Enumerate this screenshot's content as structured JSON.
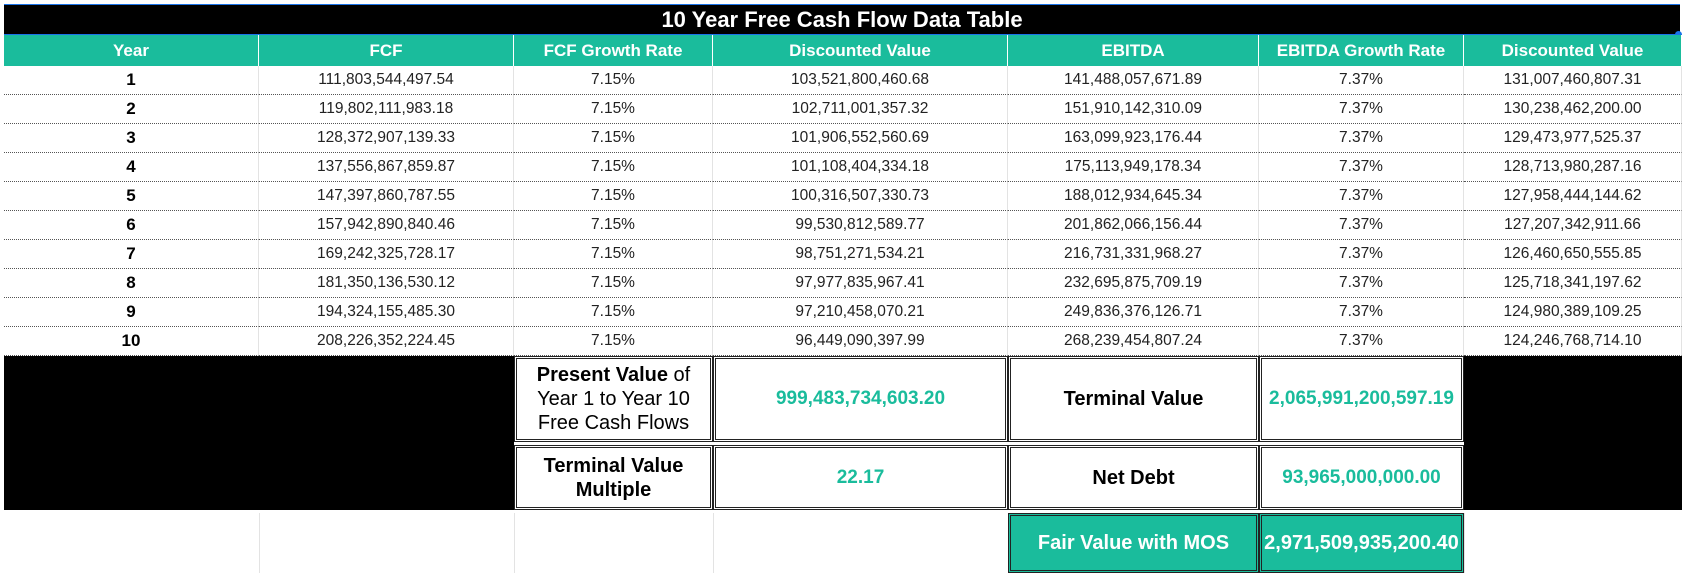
{
  "title": "10 Year Free Cash Flow Data Table",
  "colors": {
    "accent": "#1abc9c",
    "black": "#000000",
    "selection": "#1a73e8"
  },
  "headers": [
    "Year",
    "FCF",
    "FCF Growth Rate",
    "Discounted Value",
    "EBITDA",
    "EBITDA Growth Rate",
    "Discounted Value"
  ],
  "rows": [
    [
      "1",
      "111,803,544,497.54",
      "7.15%",
      "103,521,800,460.68",
      "141,488,057,671.89",
      "7.37%",
      "131,007,460,807.31"
    ],
    [
      "2",
      "119,802,111,983.18",
      "7.15%",
      "102,711,001,357.32",
      "151,910,142,310.09",
      "7.37%",
      "130,238,462,200.00"
    ],
    [
      "3",
      "128,372,907,139.33",
      "7.15%",
      "101,906,552,560.69",
      "163,099,923,176.44",
      "7.37%",
      "129,473,977,525.37"
    ],
    [
      "4",
      "137,556,867,859.87",
      "7.15%",
      "101,108,404,334.18",
      "175,113,949,178.34",
      "7.37%",
      "128,713,980,287.16"
    ],
    [
      "5",
      "147,397,860,787.55",
      "7.15%",
      "100,316,507,330.73",
      "188,012,934,645.34",
      "7.37%",
      "127,958,444,144.62"
    ],
    [
      "6",
      "157,942,890,840.46",
      "7.15%",
      "99,530,812,589.77",
      "201,862,066,156.44",
      "7.37%",
      "127,207,342,911.66"
    ],
    [
      "7",
      "169,242,325,728.17",
      "7.15%",
      "98,751,271,534.21",
      "216,731,331,968.27",
      "7.37%",
      "126,460,650,555.85"
    ],
    [
      "8",
      "181,350,136,530.12",
      "7.15%",
      "97,977,835,967.41",
      "232,695,875,709.19",
      "7.37%",
      "125,718,341,197.62"
    ],
    [
      "9",
      "194,324,155,485.30",
      "7.15%",
      "97,210,458,070.21",
      "249,836,376,126.71",
      "7.37%",
      "124,980,389,109.25"
    ],
    [
      "10",
      "208,226,352,224.45",
      "7.15%",
      "96,449,090,397.99",
      "268,239,454,807.24",
      "7.37%",
      "124,246,768,714.10"
    ]
  ],
  "summary": {
    "pv_label_bold": "Present Value",
    "pv_label_rest_1": " of",
    "pv_label_line2": "Year 1 to Year 10",
    "pv_label_line3": "Free Cash Flows",
    "pv_value": "999,483,734,603.20",
    "terminal_value_label": "Terminal Value",
    "terminal_value": "2,065,991,200,597.19",
    "tv_multiple_label_1": "Terminal Value",
    "tv_multiple_label_2": "Multiple",
    "tv_multiple_value": "22.17",
    "net_debt_label": "Net Debt",
    "net_debt_value": "93,965,000,000.00",
    "fair_value_label": "Fair Value with MOS",
    "fair_value": "2,971,509,935,200.40"
  }
}
